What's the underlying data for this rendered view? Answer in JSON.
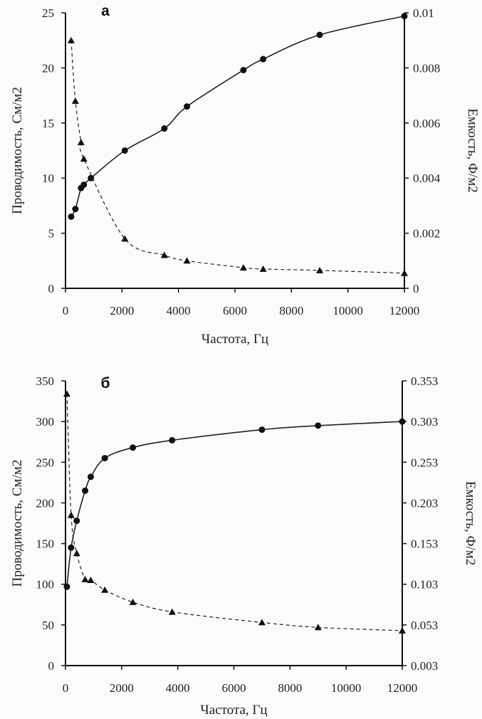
{
  "chart_data": [
    {
      "type": "scatter",
      "panel_label": "а",
      "xlabel": "Частота, Гц",
      "ylabel_left": "Проводимость, См/м2",
      "ylabel_right": "Емкость, Ф/м2",
      "xlim": [
        0,
        12000
      ],
      "ylim_left": [
        0,
        25
      ],
      "ylim_right": [
        0,
        0.01
      ],
      "x_ticks": [
        "0",
        "2000",
        "4000",
        "6000",
        "8000",
        "10000",
        "12000"
      ],
      "y_left_ticks": [
        "0",
        "5",
        "10",
        "15",
        "20",
        "25"
      ],
      "y_right_ticks": [
        "0",
        "0.002",
        "0.004",
        "0.006",
        "0.008",
        "0.01"
      ],
      "series": [
        {
          "axis": "left",
          "marker": "circle",
          "line": "solid",
          "x": [
            200,
            350,
            550,
            650,
            900,
            2100,
            3500,
            4300,
            6300,
            7000,
            9000,
            12000
          ],
          "y": [
            6.5,
            7.2,
            9.1,
            9.4,
            10.0,
            12.5,
            14.5,
            16.5,
            19.8,
            20.8,
            23.0,
            24.7
          ]
        },
        {
          "axis": "right",
          "marker": "triangle",
          "line": "dashed",
          "x": [
            200,
            350,
            550,
            650,
            2100,
            3500,
            4300,
            6300,
            7000,
            9000,
            12000
          ],
          "y": [
            0.009,
            0.0068,
            0.0053,
            0.0047,
            0.0018,
            0.0012,
            0.001,
            0.00075,
            0.0007,
            0.00065,
            0.00055
          ]
        }
      ]
    },
    {
      "type": "scatter",
      "panel_label": "б",
      "xlabel": "Частота, Гц",
      "ylabel_left": "Проводимость, См/м2",
      "ylabel_right": "Емкость, Ф/м2",
      "xlim": [
        0,
        12000
      ],
      "ylim_left": [
        0,
        350
      ],
      "ylim_right": [
        0.003,
        0.353
      ],
      "x_ticks": [
        "0",
        "2000",
        "4000",
        "6000",
        "8000",
        "10000",
        "12000"
      ],
      "y_left_ticks": [
        "0",
        "50",
        "100",
        "150",
        "200",
        "250",
        "300",
        "350"
      ],
      "y_right_ticks": [
        "0.003",
        "0.053",
        "0.103",
        "0.153",
        "0.203",
        "0.253",
        "0.303",
        "0.353"
      ],
      "series": [
        {
          "axis": "left",
          "marker": "circle",
          "line": "solid",
          "x": [
            50,
            200,
            400,
            700,
            900,
            1400,
            2400,
            3800,
            7000,
            9000,
            12000
          ],
          "y": [
            97,
            145,
            178,
            215,
            232,
            255,
            268,
            277,
            290,
            295,
            300
          ]
        },
        {
          "axis": "right",
          "marker": "triangle",
          "line": "dashed",
          "x": [
            50,
            200,
            400,
            700,
            900,
            1400,
            2400,
            3800,
            7000,
            9000,
            12000
          ],
          "y": [
            0.337,
            0.188,
            0.141,
            0.109,
            0.108,
            0.096,
            0.081,
            0.069,
            0.056,
            0.05,
            0.046
          ]
        }
      ]
    }
  ]
}
